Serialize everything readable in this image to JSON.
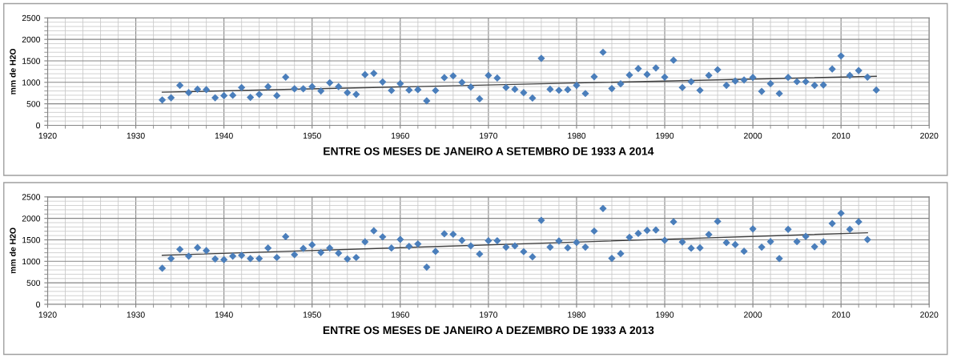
{
  "chart_data": [
    {
      "type": "scatter",
      "xlabel": "ENTRE OS MESES DE JANEIRO A SETEMBRO DE 1933 A 2014",
      "ylabel": "mm de H2O",
      "xlim": [
        1920,
        2020
      ],
      "ylim": [
        0,
        2500
      ],
      "grid": true,
      "legend": false,
      "xticks": [
        1920,
        {
          "value": 1922,
          "label": null
        },
        {
          "value": 1924,
          "label": null
        },
        {
          "value": 1926,
          "label": null
        },
        {
          "value": 1928,
          "label": null
        },
        1930,
        {
          "value": 1932,
          "label": null
        },
        {
          "value": 1934,
          "label": null
        },
        {
          "value": 1936,
          "label": null
        },
        {
          "value": 1938,
          "label": null
        },
        1940,
        {
          "value": 1942,
          "label": null
        },
        {
          "value": 1944,
          "label": null
        },
        {
          "value": 1946,
          "label": null
        },
        {
          "value": 1948,
          "label": null
        },
        1950,
        {
          "value": 1952,
          "label": null
        },
        {
          "value": 1954,
          "label": null
        },
        {
          "value": 1956,
          "label": null
        },
        {
          "value": 1958,
          "label": null
        },
        1960,
        {
          "value": 1962,
          "label": null
        },
        {
          "value": 1964,
          "label": null
        },
        {
          "value": 1966,
          "label": null
        },
        {
          "value": 1968,
          "label": null
        },
        1970,
        {
          "value": 1972,
          "label": null
        },
        {
          "value": 1974,
          "label": null
        },
        {
          "value": 1976,
          "label": null
        },
        {
          "value": 1978,
          "label": null
        },
        1980,
        {
          "value": 1982,
          "label": null
        },
        {
          "value": 1984,
          "label": null
        },
        {
          "value": 1986,
          "label": null
        },
        {
          "value": 1988,
          "label": null
        },
        1990,
        {
          "value": 1992,
          "label": null
        },
        {
          "value": 1994,
          "label": null
        },
        {
          "value": 1996,
          "label": null
        },
        {
          "value": 1998,
          "label": null
        },
        2000,
        {
          "value": 2002,
          "label": null
        },
        {
          "value": 2004,
          "label": null
        },
        {
          "value": 2006,
          "label": null
        },
        {
          "value": 2008,
          "label": null
        },
        2010,
        {
          "value": 2012,
          "label": null
        },
        {
          "value": 2014,
          "label": null
        },
        {
          "value": 2016,
          "label": null
        },
        {
          "value": 2018,
          "label": null
        },
        2020
      ],
      "yticks": [
        0,
        {
          "value": 100,
          "label": null
        },
        {
          "value": 200,
          "label": null
        },
        {
          "value": 300,
          "label": null
        },
        {
          "value": 400,
          "label": null
        },
        500,
        {
          "value": 600,
          "label": null
        },
        {
          "value": 700,
          "label": null
        },
        {
          "value": 800,
          "label": null
        },
        {
          "value": 900,
          "label": null
        },
        1000,
        {
          "value": 1100,
          "label": null
        },
        {
          "value": 1200,
          "label": null
        },
        {
          "value": 1300,
          "label": null
        },
        {
          "value": 1400,
          "label": null
        },
        1500,
        {
          "value": 1600,
          "label": null
        },
        {
          "value": 1700,
          "label": null
        },
        {
          "value": 1800,
          "label": null
        },
        {
          "value": 1900,
          "label": null
        },
        2000,
        {
          "value": 2100,
          "label": null
        },
        {
          "value": 2200,
          "label": null
        },
        {
          "value": 2300,
          "label": null
        },
        {
          "value": 2400,
          "label": null
        },
        2500
      ],
      "series": [
        {
          "marker": "diamond",
          "color": "#4a7ebb",
          "x": [
            1933,
            1934,
            1935,
            1936,
            1937,
            1938,
            1939,
            1940,
            1941,
            1942,
            1943,
            1944,
            1945,
            1946,
            1947,
            1948,
            1949,
            1950,
            1951,
            1952,
            1953,
            1954,
            1955,
            1956,
            1957,
            1958,
            1959,
            1960,
            1961,
            1962,
            1963,
            1964,
            1965,
            1966,
            1967,
            1968,
            1969,
            1970,
            1971,
            1972,
            1973,
            1974,
            1975,
            1976,
            1977,
            1978,
            1979,
            1980,
            1981,
            1982,
            1983,
            1984,
            1985,
            1986,
            1987,
            1988,
            1989,
            1990,
            1991,
            1992,
            1993,
            1994,
            1995,
            1996,
            1997,
            1998,
            1999,
            2000,
            2001,
            2002,
            2003,
            2004,
            2005,
            2006,
            2007,
            2008,
            2009,
            2010,
            2011,
            2012,
            2013,
            2014
          ],
          "values": [
            590,
            640,
            930,
            760,
            840,
            830,
            640,
            690,
            700,
            880,
            650,
            720,
            900,
            690,
            1120,
            850,
            850,
            900,
            800,
            990,
            900,
            760,
            720,
            1180,
            1210,
            1010,
            810,
            970,
            820,
            830,
            570,
            810,
            1110,
            1150,
            1000,
            890,
            615,
            1160,
            1100,
            880,
            840,
            760,
            635,
            1560,
            840,
            815,
            830,
            930,
            740,
            1130,
            1700,
            855,
            965,
            1170,
            1320,
            1185,
            1335,
            1120,
            1515,
            880,
            1015,
            815,
            1160,
            1295,
            930,
            1030,
            1055,
            1115,
            790,
            970,
            740,
            1115,
            1015,
            1015,
            930,
            940,
            1310,
            1615,
            1160,
            1275,
            1120,
            820
          ]
        },
        {
          "type": "line",
          "marker": "none",
          "color": "#404040",
          "x": [
            1933,
            2014
          ],
          "values": [
            770,
            1140
          ]
        }
      ]
    },
    {
      "type": "scatter",
      "xlabel": "ENTRE OS MESES DE JANEIRO A DEZEMBRO DE 1933 A 2013",
      "ylabel": "mm de H2O",
      "xlim": [
        1920,
        2020
      ],
      "ylim": [
        0,
        2500
      ],
      "grid": true,
      "legend": false,
      "xticks": [
        1920,
        {
          "value": 1922,
          "label": null
        },
        {
          "value": 1924,
          "label": null
        },
        {
          "value": 1926,
          "label": null
        },
        {
          "value": 1928,
          "label": null
        },
        1930,
        {
          "value": 1932,
          "label": null
        },
        {
          "value": 1934,
          "label": null
        },
        {
          "value": 1936,
          "label": null
        },
        {
          "value": 1938,
          "label": null
        },
        1940,
        {
          "value": 1942,
          "label": null
        },
        {
          "value": 1944,
          "label": null
        },
        {
          "value": 1946,
          "label": null
        },
        {
          "value": 1948,
          "label": null
        },
        1950,
        {
          "value": 1952,
          "label": null
        },
        {
          "value": 1954,
          "label": null
        },
        {
          "value": 1956,
          "label": null
        },
        {
          "value": 1958,
          "label": null
        },
        1960,
        {
          "value": 1962,
          "label": null
        },
        {
          "value": 1964,
          "label": null
        },
        {
          "value": 1966,
          "label": null
        },
        {
          "value": 1968,
          "label": null
        },
        1970,
        {
          "value": 1972,
          "label": null
        },
        {
          "value": 1974,
          "label": null
        },
        {
          "value": 1976,
          "label": null
        },
        {
          "value": 1978,
          "label": null
        },
        1980,
        {
          "value": 1982,
          "label": null
        },
        {
          "value": 1984,
          "label": null
        },
        {
          "value": 1986,
          "label": null
        },
        {
          "value": 1988,
          "label": null
        },
        1990,
        {
          "value": 1992,
          "label": null
        },
        {
          "value": 1994,
          "label": null
        },
        {
          "value": 1996,
          "label": null
        },
        {
          "value": 1998,
          "label": null
        },
        2000,
        {
          "value": 2002,
          "label": null
        },
        {
          "value": 2004,
          "label": null
        },
        {
          "value": 2006,
          "label": null
        },
        {
          "value": 2008,
          "label": null
        },
        2010,
        {
          "value": 2012,
          "label": null
        },
        {
          "value": 2014,
          "label": null
        },
        {
          "value": 2016,
          "label": null
        },
        {
          "value": 2018,
          "label": null
        },
        2020
      ],
      "yticks": [
        0,
        {
          "value": 100,
          "label": null
        },
        {
          "value": 200,
          "label": null
        },
        {
          "value": 300,
          "label": null
        },
        {
          "value": 400,
          "label": null
        },
        500,
        {
          "value": 600,
          "label": null
        },
        {
          "value": 700,
          "label": null
        },
        {
          "value": 800,
          "label": null
        },
        {
          "value": 900,
          "label": null
        },
        1000,
        {
          "value": 1100,
          "label": null
        },
        {
          "value": 1200,
          "label": null
        },
        {
          "value": 1300,
          "label": null
        },
        {
          "value": 1400,
          "label": null
        },
        1500,
        {
          "value": 1600,
          "label": null
        },
        {
          "value": 1700,
          "label": null
        },
        {
          "value": 1800,
          "label": null
        },
        {
          "value": 1900,
          "label": null
        },
        2000,
        {
          "value": 2100,
          "label": null
        },
        {
          "value": 2200,
          "label": null
        },
        {
          "value": 2300,
          "label": null
        },
        {
          "value": 2400,
          "label": null
        },
        2500
      ],
      "series": [
        {
          "marker": "diamond",
          "color": "#4a7ebb",
          "x": [
            1933,
            1934,
            1935,
            1936,
            1937,
            1938,
            1939,
            1940,
            1941,
            1942,
            1943,
            1944,
            1945,
            1946,
            1947,
            1948,
            1949,
            1950,
            1951,
            1952,
            1953,
            1954,
            1955,
            1956,
            1957,
            1958,
            1959,
            1960,
            1961,
            1962,
            1963,
            1964,
            1965,
            1966,
            1967,
            1968,
            1969,
            1970,
            1971,
            1972,
            1973,
            1974,
            1975,
            1976,
            1977,
            1978,
            1979,
            1980,
            1981,
            1982,
            1983,
            1984,
            1985,
            1986,
            1987,
            1988,
            1989,
            1990,
            1991,
            1992,
            1993,
            1994,
            1995,
            1996,
            1997,
            1998,
            1999,
            2000,
            2001,
            2002,
            2003,
            2004,
            2005,
            2006,
            2007,
            2008,
            2009,
            2010,
            2011,
            2012,
            2013
          ],
          "values": [
            840,
            1065,
            1280,
            1120,
            1320,
            1250,
            1055,
            1040,
            1120,
            1140,
            1065,
            1065,
            1310,
            1090,
            1575,
            1155,
            1300,
            1385,
            1205,
            1310,
            1190,
            1055,
            1090,
            1455,
            1710,
            1570,
            1310,
            1510,
            1350,
            1405,
            865,
            1230,
            1640,
            1630,
            1490,
            1360,
            1170,
            1480,
            1480,
            1330,
            1360,
            1225,
            1105,
            1955,
            1330,
            1475,
            1315,
            1440,
            1330,
            1705,
            2230,
            1070,
            1180,
            1560,
            1650,
            1720,
            1730,
            1490,
            1920,
            1450,
            1305,
            1315,
            1625,
            1930,
            1435,
            1390,
            1235,
            1755,
            1330,
            1460,
            1065,
            1745,
            1460,
            1580,
            1340,
            1455,
            1880,
            2120,
            1745,
            1920,
            1505
          ]
        },
        {
          "type": "line",
          "marker": "none",
          "color": "#404040",
          "x": [
            1933,
            2013
          ],
          "values": [
            1140,
            1665
          ]
        }
      ]
    }
  ]
}
